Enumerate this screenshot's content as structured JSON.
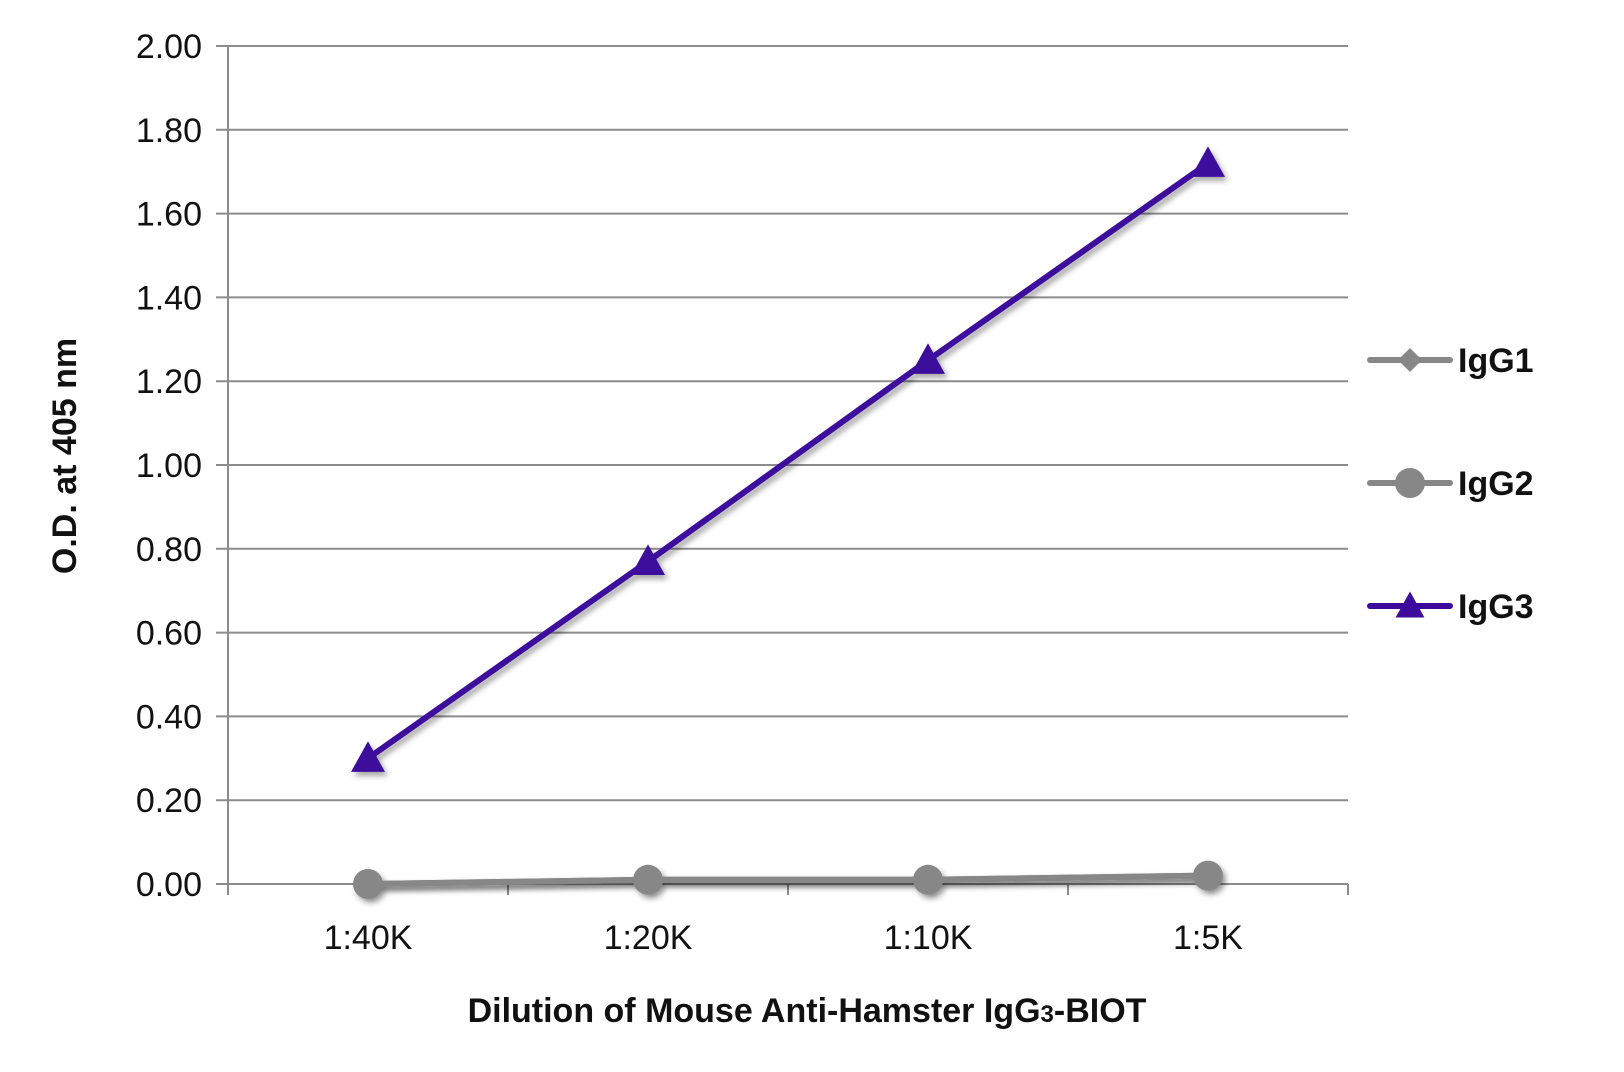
{
  "chart_data": {
    "type": "line",
    "title": "",
    "categories": [
      "1:40K",
      "1:20K",
      "1:10K",
      "1:5K"
    ],
    "xlabel": "Dilution of Mouse Anti-Hamster IgG3-BIOT",
    "xlabel_parts": {
      "before": "Dilution of Mouse Anti-Hamster IgG",
      "subscript": "3",
      "after": "-BIOT"
    },
    "ylabel": "O.D. at 405 nm",
    "ylim": [
      0,
      2.0
    ],
    "yticks": [
      "0.00",
      "0.20",
      "0.40",
      "0.60",
      "0.80",
      "1.00",
      "1.20",
      "1.40",
      "1.60",
      "1.80",
      "2.00"
    ],
    "grid": true,
    "legend_position": "right",
    "series": [
      {
        "name": "IgG1",
        "marker": "diamond",
        "color": "#878787",
        "values": [
          0.0,
          0.01,
          0.01,
          0.02
        ]
      },
      {
        "name": "IgG2",
        "marker": "circle",
        "color": "#878787",
        "values": [
          0.0,
          0.01,
          0.01,
          0.02
        ]
      },
      {
        "name": "IgG3",
        "marker": "triangle",
        "color": "#3d0b9c",
        "values": [
          0.3,
          0.77,
          1.25,
          1.72
        ]
      }
    ]
  }
}
